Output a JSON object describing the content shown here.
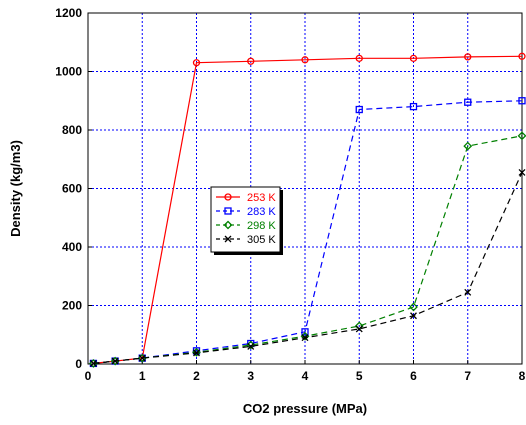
{
  "chart_data": {
    "type": "line",
    "title": "",
    "xlabel": "CO2 pressure (MPa)",
    "ylabel": "Density (kg/m3)",
    "xlim": [
      0,
      8
    ],
    "ylim": [
      0,
      1200
    ],
    "xticks": [
      "0",
      "1",
      "2",
      "3",
      "4",
      "5",
      "6",
      "7",
      "8"
    ],
    "yticks": [
      "0",
      "200",
      "400",
      "600",
      "800",
      "1000",
      "1200"
    ],
    "grid": true,
    "legend_position": "center-left",
    "series": [
      {
        "name": "253 K",
        "color": "#ff0000",
        "marker": "circle",
        "dash": "solid",
        "points": [
          [
            0.1,
            2
          ],
          [
            0.5,
            10
          ],
          [
            1,
            20
          ],
          [
            2,
            1030
          ],
          [
            3,
            1035
          ],
          [
            4,
            1040
          ],
          [
            5,
            1045
          ],
          [
            6,
            1045
          ],
          [
            7,
            1050
          ],
          [
            8,
            1052
          ]
        ]
      },
      {
        "name": "283 K",
        "color": "#0000ff",
        "marker": "square",
        "dash": "dashed",
        "points": [
          [
            0.1,
            2
          ],
          [
            0.5,
            10
          ],
          [
            1,
            20
          ],
          [
            2,
            45
          ],
          [
            3,
            70
          ],
          [
            4,
            110
          ],
          [
            5,
            870
          ],
          [
            6,
            880
          ],
          [
            7,
            895
          ],
          [
            8,
            900
          ]
        ]
      },
      {
        "name": "298 K",
        "color": "#008000",
        "marker": "diamond",
        "dash": "dashed",
        "points": [
          [
            0.1,
            2
          ],
          [
            0.5,
            10
          ],
          [
            1,
            20
          ],
          [
            2,
            40
          ],
          [
            3,
            65
          ],
          [
            4,
            95
          ],
          [
            5,
            130
          ],
          [
            6,
            195
          ],
          [
            7,
            745
          ],
          [
            8,
            780
          ]
        ]
      },
      {
        "name": "305 K",
        "color": "#000000",
        "marker": "x",
        "dash": "dashed",
        "points": [
          [
            0.1,
            2
          ],
          [
            0.5,
            10
          ],
          [
            1,
            20
          ],
          [
            2,
            38
          ],
          [
            3,
            60
          ],
          [
            4,
            90
          ],
          [
            5,
            120
          ],
          [
            6,
            165
          ],
          [
            7,
            245
          ],
          [
            8,
            655
          ]
        ]
      }
    ]
  }
}
